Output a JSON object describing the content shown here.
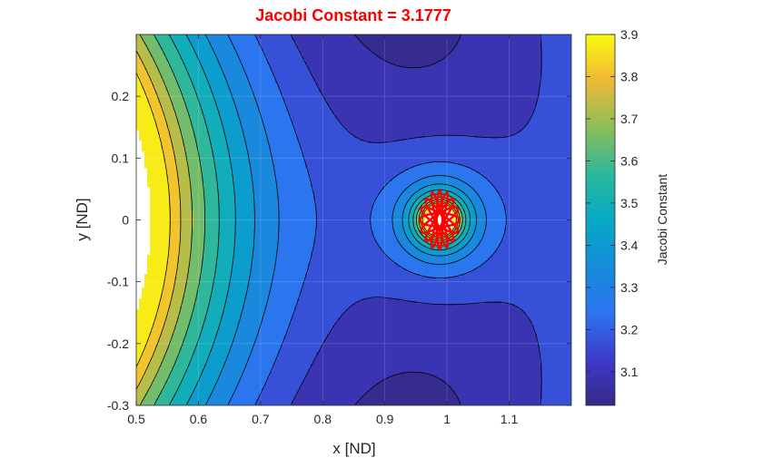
{
  "chart_data": {
    "type": "contour",
    "title": "Jacobi  Constant  =  3.1777",
    "xlabel": "x [ND]",
    "ylabel": "y [ND]",
    "xlim": [
      0.5,
      1.2
    ],
    "ylim": [
      -0.3,
      0.3
    ],
    "xticks": [
      "0.5",
      "0.6",
      "0.7",
      "0.8",
      "0.9",
      "1",
      "1.1"
    ],
    "yticks": [
      "0.2",
      "0.1",
      "0",
      "-0.1",
      "-0.2",
      "-0.3"
    ],
    "grid": true,
    "colorbar": {
      "label": "Jacobi Constant",
      "range": [
        3.02,
        3.9
      ],
      "ticks": [
        "3.1",
        "3.2",
        "3.3",
        "3.4",
        "3.5",
        "3.6",
        "3.7",
        "3.8",
        "3.9"
      ],
      "colormap": "parula"
    },
    "contour_levels": [
      3.05,
      3.13,
      3.21,
      3.29,
      3.37,
      3.45,
      3.53,
      3.61,
      3.69,
      3.77,
      3.85
    ],
    "forbidden_region_value": 3.1777,
    "secondary_body": {
      "x": 0.988,
      "y": 0.0
    },
    "trajectory": {
      "color": "#ff0000",
      "description": "rosette orbit around secondary body",
      "center": [
        0.988,
        0.0
      ],
      "radius_x": 0.032,
      "radius_y": 0.048,
      "petals": 8
    }
  },
  "colors": {
    "title": "#ff0000",
    "trajectory": "#ff0000",
    "contour_line": "#000000",
    "grid": "#ffffff"
  }
}
